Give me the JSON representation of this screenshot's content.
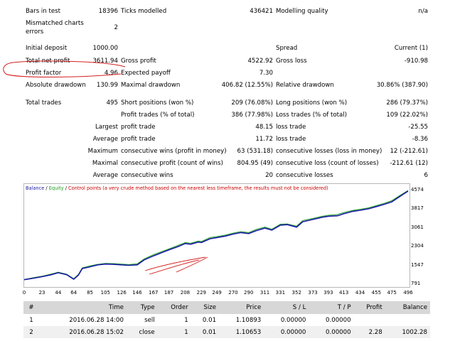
{
  "report": {
    "bars_label": "Bars in test",
    "bars_value": "18396",
    "ticks_label": "Ticks modelled",
    "ticks_value": "436421",
    "quality_label": "Modelling quality",
    "quality_value": "n/a",
    "mismatch_label_1": "Mismatched charts",
    "mismatch_label_2": "errors",
    "mismatch_value": "2",
    "deposit_label": "Initial deposit",
    "deposit_value": "1000.00",
    "spread_label": "Spread",
    "spread_value": "Current (1)",
    "net_label": "Total net profit",
    "net_value": "3611.94",
    "gross_profit_label": "Gross profit",
    "gross_profit_value": "4522.92",
    "gross_loss_label": "Gross loss",
    "gross_loss_value": "-910.98",
    "pf_label": "Profit factor",
    "pf_value": "4.96",
    "payoff_label": "Expected payoff",
    "payoff_value": "7.30",
    "abs_dd_label": "Absolute drawdown",
    "abs_dd_value": "130.99",
    "max_dd_label": "Maximal drawdown",
    "max_dd_value": "406.82 (12.55%)",
    "rel_dd_label": "Relative drawdown",
    "rel_dd_value": "30.86% (387.90)",
    "trades_label": "Total trades",
    "trades_value": "495",
    "short_label": "Short positions (won %)",
    "short_value": "209 (76.08%)",
    "long_label": "Long positions (won %)",
    "long_value": "286 (79.37%)",
    "ptrades_label": "Profit trades (% of total)",
    "ptrades_value": "386 (77.98%)",
    "ltrades_label": "Loss trades (% of total)",
    "ltrades_value": "109 (22.02%)",
    "largest_label": "Largest",
    "largest_profit_label": "profit trade",
    "largest_profit_value": "48.15",
    "largest_loss_label": "loss trade",
    "largest_loss_value": "-25.55",
    "average_label": "Average",
    "avg_profit_label": "profit trade",
    "avg_profit_value": "11.72",
    "avg_loss_label": "loss trade",
    "avg_loss_value": "-8.36",
    "maximum_label": "Maximum",
    "max_wins_label": "consecutive wins (profit in money)",
    "max_wins_value": "63 (531.18)",
    "max_losses_label": "consecutive losses (loss in money)",
    "max_losses_value": "12 (-212.61)",
    "maximal_label": "Maximal",
    "maximal_profit_label": "consecutive profit (count of wins)",
    "maximal_profit_value": "804.95 (49)",
    "maximal_loss_label": "consecutive loss (count of losses)",
    "maximal_loss_value": "-212.61 (12)",
    "avg2_label": "Average",
    "avg_wins_label": "consecutive wins",
    "avg_wins_value": "20",
    "avg_losses_label": "consecutive losses",
    "avg_losses_value": "6"
  },
  "legend": {
    "balance": "Balance",
    "sep1": " / ",
    "equity": "Equity",
    "sep2": " / ",
    "control": "Control points (a very crude method based on the nearest less timeframe, the results must not be considered)"
  },
  "chart_data": {
    "type": "line",
    "title": "",
    "xlabel": "",
    "ylabel": "",
    "x_ticks": [
      "0",
      "23",
      "44",
      "64",
      "85",
      "105",
      "126",
      "146",
      "167",
      "187",
      "208",
      "229",
      "249",
      "270",
      "290",
      "311",
      "331",
      "352",
      "373",
      "393",
      "413",
      "434",
      "455",
      "475",
      "496"
    ],
    "y_ticks": [
      "4574",
      "3817",
      "3061",
      "2304",
      "1547",
      "791"
    ],
    "xlim": [
      0,
      496
    ],
    "ylim": [
      791,
      4574
    ],
    "series": [
      {
        "name": "Balance",
        "color": "#1a1aa6",
        "x": [
          0,
          10,
          23,
          35,
          44,
          55,
          64,
          70,
          75,
          85,
          95,
          105,
          115,
          126,
          135,
          146,
          155,
          167,
          180,
          187,
          200,
          208,
          215,
          225,
          229,
          240,
          249,
          260,
          270,
          280,
          290,
          300,
          311,
          320,
          331,
          340,
          352,
          360,
          373,
          385,
          393,
          405,
          413,
          425,
          434,
          445,
          455,
          465,
          475,
          485,
          496
        ],
        "y": [
          1000,
          1050,
          1120,
          1200,
          1280,
          1200,
          1020,
          1180,
          1450,
          1520,
          1600,
          1630,
          1620,
          1600,
          1580,
          1600,
          1800,
          1960,
          2120,
          2200,
          2350,
          2460,
          2430,
          2520,
          2500,
          2650,
          2700,
          2760,
          2840,
          2900,
          2860,
          2980,
          3080,
          3000,
          3200,
          3220,
          3120,
          3340,
          3430,
          3520,
          3560,
          3580,
          3660,
          3760,
          3800,
          3860,
          3950,
          4040,
          4140,
          4350,
          4574
        ]
      },
      {
        "name": "Equity",
        "color": "#1f9e1f",
        "x": [
          0,
          10,
          23,
          35,
          44,
          55,
          64,
          70,
          75,
          85,
          95,
          105,
          115,
          126,
          135,
          146,
          155,
          167,
          180,
          187,
          200,
          208,
          215,
          225,
          229,
          240,
          249,
          260,
          270,
          280,
          290,
          300,
          311,
          320,
          331,
          340,
          352,
          360,
          373,
          385,
          393,
          405,
          413,
          425,
          434,
          445,
          455,
          465,
          475,
          485,
          496
        ],
        "y": [
          1010,
          1070,
          1140,
          1230,
          1300,
          1220,
          1040,
          1210,
          1480,
          1560,
          1620,
          1660,
          1650,
          1630,
          1610,
          1640,
          1840,
          2010,
          2160,
          2240,
          2400,
          2500,
          2470,
          2560,
          2540,
          2700,
          2740,
          2800,
          2880,
          2940,
          2900,
          3030,
          3120,
          3040,
          3240,
          3250,
          3160,
          3390,
          3470,
          3560,
          3600,
          3630,
          3710,
          3800,
          3840,
          3900,
          3990,
          4080,
          4190,
          4390,
          4600
        ]
      }
    ]
  },
  "table": {
    "headers": [
      "#",
      "Time",
      "Type",
      "Order",
      "Size",
      "Price",
      "S / L",
      "T / P",
      "Profit",
      "Balance"
    ],
    "rows": [
      [
        "1",
        "2016.06.28 14:00",
        "sell",
        "1",
        "0.01",
        "1.10893",
        "0.00000",
        "0.00000",
        "",
        ""
      ],
      [
        "2",
        "2016.06.28 15:02",
        "close",
        "1",
        "0.01",
        "1.10653",
        "0.00000",
        "0.00000",
        "2.28",
        "1002.28"
      ]
    ]
  },
  "colors": {
    "balance": "#1a1aa6",
    "equity": "#1f9e1f",
    "control": "#cc0000",
    "annotation": "#d42020",
    "header_bg": "#d7d7d7"
  }
}
